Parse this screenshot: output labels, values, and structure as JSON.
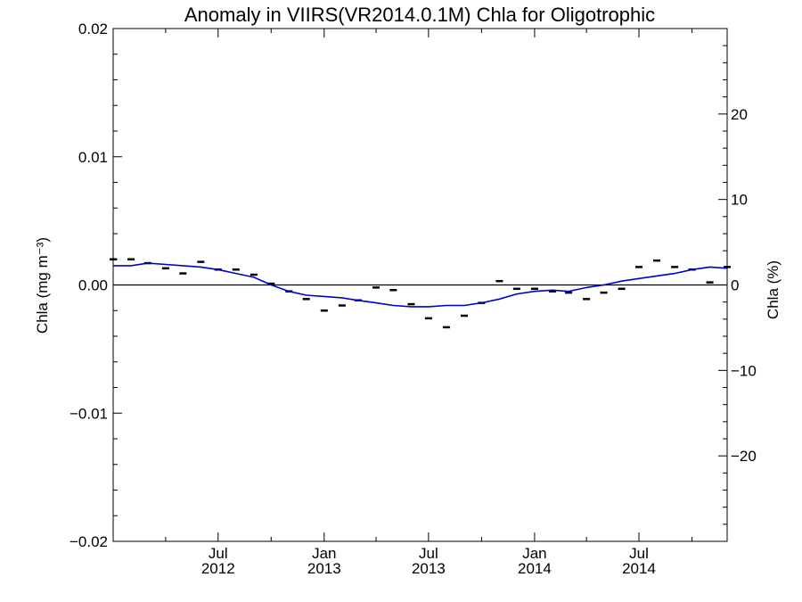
{
  "chart_data": {
    "type": "line",
    "title": "Anomaly in VIIRS(VR2014.0.1M) Chla for Oligotrophic",
    "ylabel": "Chla (mg m⁻³)",
    "y2label": "Chla (%)",
    "xlim": [
      "2012-01-01",
      "2014-12-01"
    ],
    "ylim": [
      -0.02,
      0.02
    ],
    "y2lim": [
      -30,
      30
    ],
    "y_ticks": [
      -0.02,
      -0.01,
      0.0,
      0.01,
      0.02
    ],
    "y_tick_labels": [
      "−0.02",
      "−0.01",
      "0.00",
      "0.01",
      "0.02"
    ],
    "y2_ticks": [
      -20,
      -10,
      0,
      10,
      20
    ],
    "y2_tick_labels": [
      "−20",
      "−10",
      "0",
      "10",
      "20"
    ],
    "x_ticks": [
      {
        "date": "2012-07-01",
        "month": "Jul",
        "year": "2012"
      },
      {
        "date": "2013-01-01",
        "month": "Jan",
        "year": "2013"
      },
      {
        "date": "2013-07-01",
        "month": "Jul",
        "year": "2013"
      },
      {
        "date": "2014-01-01",
        "month": "Jan",
        "year": "2014"
      },
      {
        "date": "2014-07-01",
        "month": "Jul",
        "year": "2014"
      }
    ],
    "zero_line": true,
    "grid": false,
    "series": [
      {
        "kind": "points",
        "marker": "dash",
        "color": "#000000",
        "x": [
          "2012-01-01",
          "2012-02-01",
          "2012-03-01",
          "2012-04-01",
          "2012-05-01",
          "2012-06-01",
          "2012-07-01",
          "2012-08-01",
          "2012-09-01",
          "2012-10-01",
          "2012-11-01",
          "2012-12-01",
          "2013-01-01",
          "2013-02-01",
          "2013-03-01",
          "2013-04-01",
          "2013-05-01",
          "2013-06-01",
          "2013-07-01",
          "2013-08-01",
          "2013-09-01",
          "2013-10-01",
          "2013-11-01",
          "2013-12-01",
          "2014-01-01",
          "2014-02-01",
          "2014-03-01",
          "2014-04-01",
          "2014-05-01",
          "2014-06-01",
          "2014-07-01",
          "2014-08-01",
          "2014-09-01",
          "2014-10-01",
          "2014-11-01",
          "2014-12-01"
        ],
        "values": [
          0.002,
          0.002,
          0.0017,
          0.0013,
          0.0009,
          0.0018,
          0.0012,
          0.0012,
          0.0008,
          0.0001,
          -0.0005,
          -0.0011,
          -0.002,
          -0.0016,
          -0.0012,
          -0.0002,
          -0.0004,
          -0.0015,
          -0.0026,
          -0.0033,
          -0.0024,
          -0.0014,
          0.0003,
          -0.0003,
          -0.0003,
          -0.0005,
          -0.0006,
          -0.0011,
          -0.0006,
          -0.0003,
          0.0014,
          0.0019,
          0.0014,
          0.0012,
          0.0002,
          0.0014
        ]
      },
      {
        "kind": "line",
        "color": "#0000cc",
        "x": [
          "2012-01-01",
          "2012-02-01",
          "2012-03-01",
          "2012-04-01",
          "2012-05-01",
          "2012-06-01",
          "2012-07-01",
          "2012-08-01",
          "2012-09-01",
          "2012-10-01",
          "2012-11-01",
          "2012-12-01",
          "2013-01-01",
          "2013-02-01",
          "2013-03-01",
          "2013-04-01",
          "2013-05-01",
          "2013-06-01",
          "2013-07-01",
          "2013-08-01",
          "2013-09-01",
          "2013-10-01",
          "2013-11-01",
          "2013-12-01",
          "2014-01-01",
          "2014-02-01",
          "2014-03-01",
          "2014-04-01",
          "2014-05-01",
          "2014-06-01",
          "2014-07-01",
          "2014-08-01",
          "2014-09-01",
          "2014-10-01",
          "2014-11-01",
          "2014-12-01"
        ],
        "values": [
          0.0015,
          0.0015,
          0.0017,
          0.0016,
          0.0015,
          0.0014,
          0.0012,
          0.0009,
          0.0006,
          0.0,
          -0.0005,
          -0.0008,
          -0.0009,
          -0.001,
          -0.0012,
          -0.0014,
          -0.0016,
          -0.0017,
          -0.0017,
          -0.0016,
          -0.0016,
          -0.0014,
          -0.0011,
          -0.0007,
          -0.0005,
          -0.0004,
          -0.0005,
          -0.0002,
          0.0,
          0.0003,
          0.0005,
          0.0007,
          0.0009,
          0.0012,
          0.0014,
          0.0013
        ]
      }
    ]
  }
}
